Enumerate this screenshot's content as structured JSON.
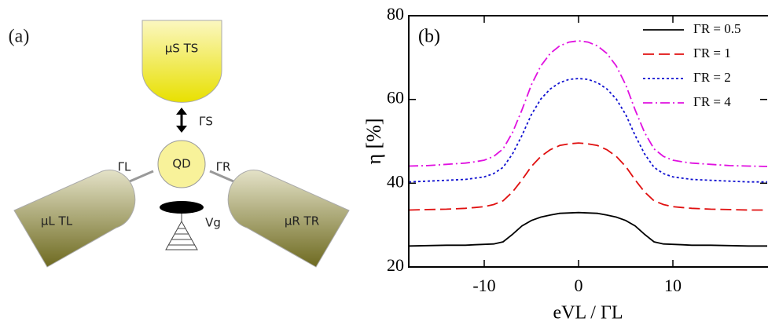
{
  "diagram": {
    "panel_label": "(a)",
    "source": "μS TS",
    "left": "μL TL",
    "right": "μR TR",
    "dot": "QD",
    "gate": "Vg",
    "coupling_s": "ΓS",
    "coupling_l": "ΓL",
    "coupling_r": "ΓR"
  },
  "chart_data": {
    "type": "line",
    "panel_label": "(b)",
    "xlabel": "eVL / ΓL",
    "ylabel": "η [%]",
    "x": [
      -18,
      -16,
      -14,
      -12,
      -11,
      -10,
      -9,
      -8,
      -7,
      -6,
      -5,
      -4,
      -3,
      -2,
      -1,
      0,
      1,
      2,
      3,
      4,
      5,
      6,
      7,
      8,
      9,
      10,
      11,
      12,
      14,
      16,
      18,
      20
    ],
    "xlim": [
      -18,
      20
    ],
    "xticks": [
      -10,
      0,
      10
    ],
    "ylim": [
      20,
      80
    ],
    "yticks": [
      20,
      40,
      60,
      80
    ],
    "legend": "upper right",
    "series": [
      {
        "name": "ΓR = 0.5",
        "color": "#000000",
        "dash": "solid",
        "values": [
          25,
          25.1,
          25.2,
          25.2,
          25.3,
          25.4,
          25.5,
          26,
          27.8,
          29.8,
          31.1,
          31.9,
          32.4,
          32.8,
          32.9,
          33,
          32.9,
          32.8,
          32.4,
          31.9,
          31.1,
          29.8,
          27.8,
          26,
          25.5,
          25.4,
          25.3,
          25.2,
          25.2,
          25.1,
          25,
          25
        ]
      },
      {
        "name": "ΓR = 1",
        "color": "#e01010",
        "dash": "long-dash",
        "values": [
          33.6,
          33.7,
          33.8,
          34,
          34.2,
          34.4,
          34.9,
          35.8,
          37.9,
          40.8,
          44,
          46.4,
          48,
          49,
          49.4,
          49.6,
          49.4,
          49,
          48,
          46.4,
          44,
          40.8,
          37.9,
          35.8,
          34.9,
          34.4,
          34.2,
          34,
          33.8,
          33.7,
          33.6,
          33.6
        ]
      },
      {
        "name": "ΓR = 2",
        "color": "#1010d0",
        "dash": "dot",
        "values": [
          40.3,
          40.5,
          40.7,
          40.9,
          41.2,
          41.5,
          42.3,
          43.8,
          47,
          51.4,
          56.4,
          60.1,
          62.5,
          64,
          64.8,
          65,
          64.8,
          64,
          62.5,
          60.1,
          56.4,
          51.4,
          47,
          43.8,
          42.3,
          41.5,
          41.2,
          40.9,
          40.7,
          40.5,
          40.3,
          40.3
        ]
      },
      {
        "name": "ΓR = 4",
        "color": "#e010e0",
        "dash": "dash-dot",
        "values": [
          44.1,
          44.2,
          44.5,
          44.8,
          45.1,
          45.5,
          46.4,
          48.2,
          52.1,
          57.5,
          63.5,
          68,
          71,
          72.8,
          73.7,
          74,
          73.7,
          72.8,
          71,
          68,
          63.5,
          57.5,
          52.1,
          48.2,
          46.4,
          45.5,
          45.1,
          44.8,
          44.5,
          44.2,
          44.1,
          44
        ]
      }
    ]
  }
}
